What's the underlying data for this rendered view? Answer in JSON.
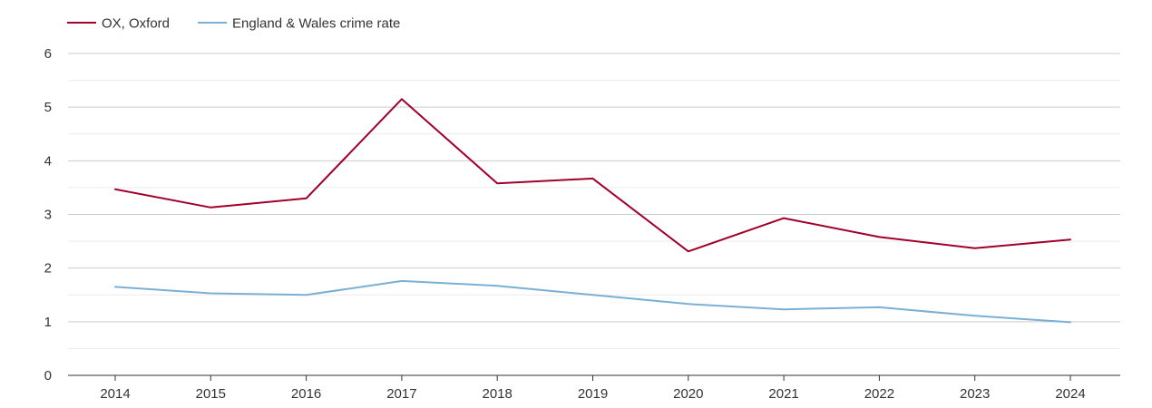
{
  "chart_data": {
    "type": "line",
    "title": "",
    "xlabel": "",
    "ylabel": "",
    "categories": [
      "2014",
      "2015",
      "2016",
      "2017",
      "2018",
      "2019",
      "2020",
      "2021",
      "2022",
      "2023",
      "2024"
    ],
    "ylim": [
      0,
      6
    ],
    "yticks": [
      "0",
      "1",
      "2",
      "3",
      "4",
      "5",
      "6"
    ],
    "grid": true,
    "legend_position": "top-left",
    "series": [
      {
        "name": "OX, Oxford",
        "color": "#a0002a",
        "values": [
          3.47,
          3.13,
          3.3,
          5.15,
          3.58,
          3.67,
          2.31,
          2.93,
          2.58,
          2.37,
          2.53
        ]
      },
      {
        "name": "England & Wales crime rate",
        "color": "#7ab0d4",
        "values": [
          1.65,
          1.53,
          1.5,
          1.76,
          1.67,
          1.5,
          1.33,
          1.23,
          1.27,
          1.11,
          0.99
        ]
      }
    ]
  }
}
